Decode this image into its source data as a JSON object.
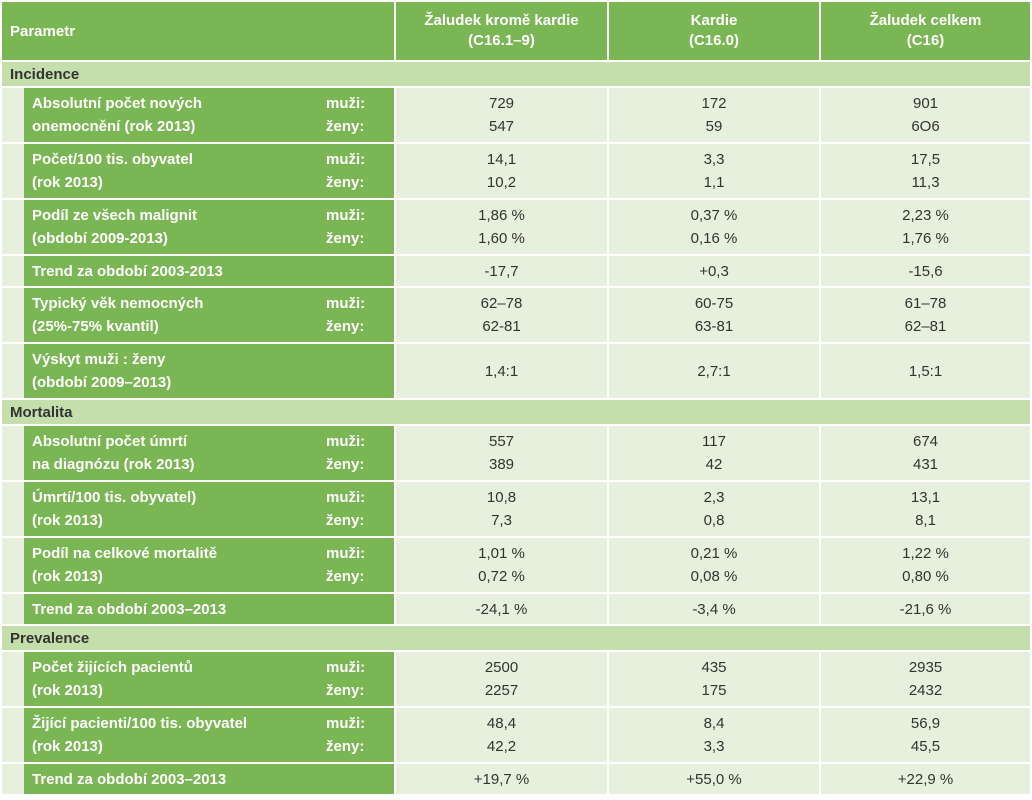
{
  "header": {
    "param": "Parametr",
    "col1": [
      "Žaludek kromě kardie",
      "(C16.1–9)"
    ],
    "col2": [
      "Kardie",
      "(C16.0)"
    ],
    "col3": [
      "Žaludek celkem",
      "(C16)"
    ]
  },
  "sections": [
    {
      "title": "Incidence",
      "rows": [
        {
          "label": [
            "Absolutní počet nových",
            "onemocnění (rok 2013)"
          ],
          "sex": [
            "muži:",
            "ženy:"
          ],
          "c1": [
            "729",
            "547"
          ],
          "c2": [
            "172",
            "59"
          ],
          "c3": [
            "901",
            "6O6"
          ]
        },
        {
          "label": [
            "Počet/100 tis. obyvatel",
            "(rok 2013)"
          ],
          "sex": [
            "muži:",
            "ženy:"
          ],
          "c1": [
            "14,1",
            "10,2"
          ],
          "c2": [
            "3,3",
            "1,1"
          ],
          "c3": [
            "17,5",
            "11,3"
          ]
        },
        {
          "label": [
            "Podíl ze všech malignit",
            "(období 2009-2013)"
          ],
          "sex": [
            "muži:",
            "ženy:"
          ],
          "c1": [
            "1,86 %",
            "1,60 %"
          ],
          "c2": [
            "0,37 %",
            "0,16 %"
          ],
          "c3": [
            "2,23 %",
            "1,76 %"
          ]
        },
        {
          "label": [
            "Trend za období 2003-2013"
          ],
          "sex": [],
          "c1": [
            "-17,7"
          ],
          "c2": [
            "+0,3"
          ],
          "c3": [
            "-15,6"
          ]
        },
        {
          "label": [
            "Typický věk nemocných",
            "(25%-75% kvantil)"
          ],
          "sex": [
            "muži:",
            "ženy:"
          ],
          "c1": [
            "62–78",
            "62-81"
          ],
          "c2": [
            "60-75",
            "63-81"
          ],
          "c3": [
            "61–78",
            "62–81"
          ]
        },
        {
          "label": [
            "Výskyt muži : ženy",
            "(období 2009–2013)"
          ],
          "sex": [],
          "c1": [
            "1,4:1"
          ],
          "c2": [
            "2,7:1"
          ],
          "c3": [
            "1,5:1"
          ]
        }
      ]
    },
    {
      "title": "Mortalita",
      "rows": [
        {
          "label": [
            "Absolutní počet úmrtí",
            "na diagnózu (rok 2013)"
          ],
          "sex": [
            "muži:",
            "ženy:"
          ],
          "c1": [
            "557",
            "389"
          ],
          "c2": [
            "117",
            "42"
          ],
          "c3": [
            "674",
            "431"
          ]
        },
        {
          "label": [
            "Úmrtí/100 tis. obyvatel)",
            "(rok 2013)"
          ],
          "sex": [
            "muži:",
            "ženy:"
          ],
          "c1": [
            "10,8",
            "7,3"
          ],
          "c2": [
            "2,3",
            "0,8"
          ],
          "c3": [
            "13,1",
            "8,1"
          ]
        },
        {
          "label": [
            "Podíl na celkové mortalitě",
            "(rok 2013)"
          ],
          "sex": [
            "muži:",
            "ženy:"
          ],
          "c1": [
            "1,01 %",
            "0,72 %"
          ],
          "c2": [
            "0,21 %",
            "0,08 %"
          ],
          "c3": [
            "1,22 %",
            "0,80 %"
          ]
        },
        {
          "label": [
            "Trend za období 2003–2013"
          ],
          "sex": [],
          "c1": [
            "-24,1 %"
          ],
          "c2": [
            "-3,4 %"
          ],
          "c3": [
            "-21,6 %"
          ]
        }
      ]
    },
    {
      "title": "Prevalence",
      "rows": [
        {
          "label": [
            "Počet žijících pacientů",
            "(rok 2013)"
          ],
          "sex": [
            "muži:",
            "ženy:"
          ],
          "c1": [
            "2500",
            "2257"
          ],
          "c2": [
            "435",
            "175"
          ],
          "c3": [
            "2935",
            "2432"
          ]
        },
        {
          "label": [
            "Žijící pacienti/100 tis. obyvatel",
            "(rok 2013)"
          ],
          "sex": [
            "muži:",
            "ženy:"
          ],
          "c1": [
            "48,4",
            "42,2"
          ],
          "c2": [
            "8,4",
            "3,3"
          ],
          "c3": [
            "56,9",
            "45,5"
          ]
        },
        {
          "label": [
            "Trend za období 2003–2013"
          ],
          "sex": [],
          "c1": [
            "+19,7 %"
          ],
          "c2": [
            "+55,0 %"
          ],
          "c3": [
            "+22,9 %"
          ]
        }
      ]
    }
  ]
}
